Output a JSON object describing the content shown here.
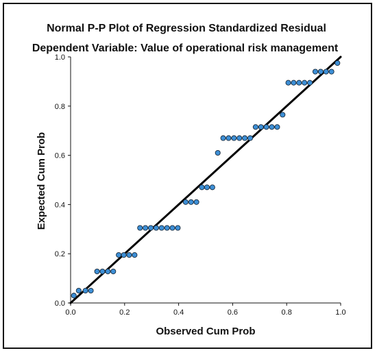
{
  "chart_data": {
    "type": "scatter",
    "title": "Normal P-P Plot of Regression Standardized Residual",
    "subtitle": "Dependent Variable: Value of operational risk management",
    "xlabel": "Observed Cum Prob",
    "ylabel": "Expected Cum Prob",
    "xlim": [
      0,
      1
    ],
    "ylim": [
      0,
      1
    ],
    "x_ticks": [
      "0.0",
      "0.2",
      "0.4",
      "0.6",
      "0.8",
      "1.0"
    ],
    "y_ticks": [
      "0.0",
      "0.2",
      "0.4",
      "0.6",
      "0.8",
      "1.0"
    ],
    "grid": false,
    "point_color": "#3d8fd6",
    "line_color": "#000000",
    "reference_line": [
      [
        0,
        0
      ],
      [
        1,
        1
      ]
    ],
    "series": [
      {
        "points": [
          [
            0.012,
            0.03
          ],
          [
            0.03,
            0.05
          ],
          [
            0.055,
            0.05
          ],
          [
            0.075,
            0.05
          ],
          [
            0.098,
            0.128
          ],
          [
            0.118,
            0.128
          ],
          [
            0.138,
            0.128
          ],
          [
            0.158,
            0.128
          ],
          [
            0.178,
            0.195
          ],
          [
            0.197,
            0.195
          ],
          [
            0.217,
            0.195
          ],
          [
            0.237,
            0.195
          ],
          [
            0.257,
            0.305
          ],
          [
            0.277,
            0.305
          ],
          [
            0.297,
            0.305
          ],
          [
            0.317,
            0.305
          ],
          [
            0.337,
            0.305
          ],
          [
            0.357,
            0.305
          ],
          [
            0.377,
            0.305
          ],
          [
            0.397,
            0.305
          ],
          [
            0.426,
            0.41
          ],
          [
            0.446,
            0.41
          ],
          [
            0.466,
            0.41
          ],
          [
            0.486,
            0.47
          ],
          [
            0.505,
            0.47
          ],
          [
            0.525,
            0.47
          ],
          [
            0.545,
            0.61
          ],
          [
            0.565,
            0.67
          ],
          [
            0.585,
            0.67
          ],
          [
            0.605,
            0.67
          ],
          [
            0.625,
            0.67
          ],
          [
            0.645,
            0.67
          ],
          [
            0.665,
            0.67
          ],
          [
            0.685,
            0.715
          ],
          [
            0.705,
            0.715
          ],
          [
            0.725,
            0.715
          ],
          [
            0.745,
            0.715
          ],
          [
            0.765,
            0.715
          ],
          [
            0.785,
            0.765
          ],
          [
            0.806,
            0.895
          ],
          [
            0.826,
            0.895
          ],
          [
            0.846,
            0.895
          ],
          [
            0.866,
            0.895
          ],
          [
            0.886,
            0.895
          ],
          [
            0.906,
            0.94
          ],
          [
            0.926,
            0.94
          ],
          [
            0.946,
            0.94
          ],
          [
            0.966,
            0.94
          ],
          [
            0.988,
            0.975
          ]
        ]
      }
    ]
  }
}
